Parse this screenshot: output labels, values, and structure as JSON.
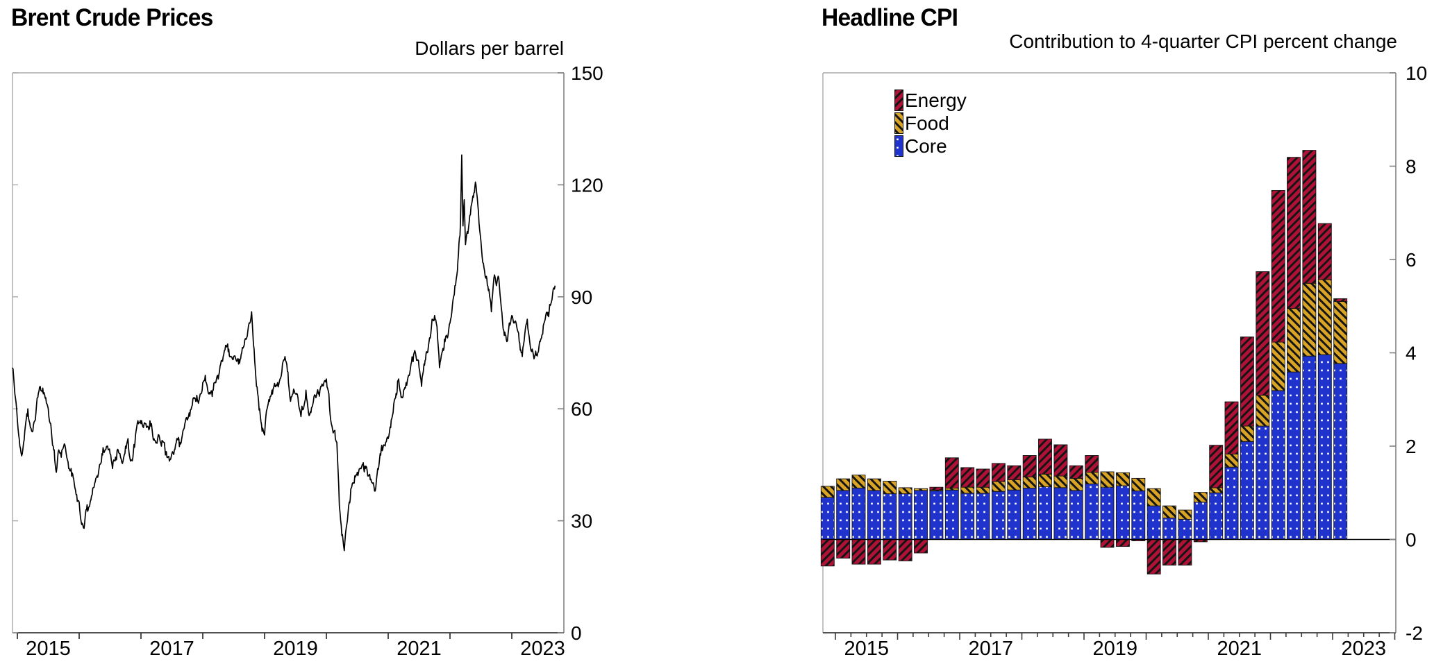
{
  "page": {
    "background": "#ffffff"
  },
  "chart_data": [
    {
      "type": "line",
      "title": "Brent Crude Prices",
      "units_label": "Dollars per barrel",
      "xlim": [
        2014.9,
        2023.85
      ],
      "ylim": [
        0,
        150
      ],
      "y_ticks": [
        0,
        30,
        60,
        90,
        120,
        150
      ],
      "x_tick_years": [
        2015,
        2016,
        2017,
        2018,
        2019,
        2020,
        2021,
        2022,
        2023
      ],
      "x_label_years": [
        "2015",
        "2017",
        "2019",
        "2021",
        "2023"
      ],
      "grid": false,
      "legend_position": "none",
      "series": [
        {
          "name": "Brent crude oil price",
          "color": "#000000",
          "points": [
            [
              2014.92,
              71
            ],
            [
              2014.96,
              64
            ],
            [
              2015.0,
              57
            ],
            [
              2015.04,
              50
            ],
            [
              2015.08,
              48
            ],
            [
              2015.12,
              54
            ],
            [
              2015.17,
              60
            ],
            [
              2015.21,
              55
            ],
            [
              2015.25,
              54
            ],
            [
              2015.29,
              57
            ],
            [
              2015.33,
              63
            ],
            [
              2015.37,
              66
            ],
            [
              2015.42,
              64
            ],
            [
              2015.46,
              63
            ],
            [
              2015.5,
              60
            ],
            [
              2015.54,
              56
            ],
            [
              2015.58,
              50
            ],
            [
              2015.63,
              43
            ],
            [
              2015.67,
              49
            ],
            [
              2015.71,
              47
            ],
            [
              2015.75,
              50
            ],
            [
              2015.79,
              48
            ],
            [
              2015.83,
              44
            ],
            [
              2015.87,
              44
            ],
            [
              2015.92,
              40
            ],
            [
              2015.96,
              37
            ],
            [
              2016.0,
              35
            ],
            [
              2016.04,
              29
            ],
            [
              2016.08,
              28
            ],
            [
              2016.12,
              33
            ],
            [
              2016.17,
              34
            ],
            [
              2016.21,
              37
            ],
            [
              2016.25,
              40
            ],
            [
              2016.29,
              42
            ],
            [
              2016.33,
              45
            ],
            [
              2016.37,
              48
            ],
            [
              2016.42,
              49
            ],
            [
              2016.46,
              50
            ],
            [
              2016.5,
              48
            ],
            [
              2016.54,
              44
            ],
            [
              2016.58,
              46
            ],
            [
              2016.63,
              49
            ],
            [
              2016.67,
              47
            ],
            [
              2016.71,
              46
            ],
            [
              2016.75,
              50
            ],
            [
              2016.79,
              52
            ],
            [
              2016.83,
              46
            ],
            [
              2016.87,
              47
            ],
            [
              2016.92,
              54
            ],
            [
              2016.96,
              56
            ],
            [
              2017.0,
              56
            ],
            [
              2017.04,
              55
            ],
            [
              2017.08,
              56
            ],
            [
              2017.12,
              55
            ],
            [
              2017.17,
              56
            ],
            [
              2017.21,
              52
            ],
            [
              2017.25,
              51
            ],
            [
              2017.29,
              53
            ],
            [
              2017.33,
              50
            ],
            [
              2017.37,
              51
            ],
            [
              2017.42,
              47
            ],
            [
              2017.46,
              46
            ],
            [
              2017.5,
              48
            ],
            [
              2017.54,
              49
            ],
            [
              2017.58,
              52
            ],
            [
              2017.63,
              51
            ],
            [
              2017.67,
              53
            ],
            [
              2017.71,
              56
            ],
            [
              2017.75,
              57
            ],
            [
              2017.79,
              58
            ],
            [
              2017.83,
              61
            ],
            [
              2017.87,
              63
            ],
            [
              2017.92,
              62
            ],
            [
              2017.96,
              64
            ],
            [
              2018.0,
              67
            ],
            [
              2018.04,
              69
            ],
            [
              2018.08,
              65
            ],
            [
              2018.12,
              64
            ],
            [
              2018.17,
              65
            ],
            [
              2018.21,
              67
            ],
            [
              2018.25,
              68
            ],
            [
              2018.29,
              72
            ],
            [
              2018.33,
              74
            ],
            [
              2018.37,
              77
            ],
            [
              2018.42,
              76
            ],
            [
              2018.46,
              74
            ],
            [
              2018.5,
              74
            ],
            [
              2018.54,
              73
            ],
            [
              2018.58,
              72
            ],
            [
              2018.63,
              75
            ],
            [
              2018.67,
              77
            ],
            [
              2018.71,
              79
            ],
            [
              2018.75,
              83
            ],
            [
              2018.79,
              86
            ],
            [
              2018.83,
              76
            ],
            [
              2018.87,
              66
            ],
            [
              2018.92,
              60
            ],
            [
              2018.96,
              54
            ],
            [
              2019.0,
              53
            ],
            [
              2019.04,
              60
            ],
            [
              2019.08,
              62
            ],
            [
              2019.12,
              65
            ],
            [
              2019.17,
              66
            ],
            [
              2019.21,
              67
            ],
            [
              2019.25,
              68
            ],
            [
              2019.29,
              72
            ],
            [
              2019.33,
              74
            ],
            [
              2019.37,
              70
            ],
            [
              2019.42,
              62
            ],
            [
              2019.46,
              64
            ],
            [
              2019.5,
              64
            ],
            [
              2019.54,
              63
            ],
            [
              2019.58,
              59
            ],
            [
              2019.63,
              60
            ],
            [
              2019.67,
              65
            ],
            [
              2019.71,
              59
            ],
            [
              2019.75,
              59
            ],
            [
              2019.79,
              62
            ],
            [
              2019.83,
              63
            ],
            [
              2019.87,
              64
            ],
            [
              2019.92,
              66
            ],
            [
              2019.96,
              67
            ],
            [
              2020.0,
              68
            ],
            [
              2020.04,
              64
            ],
            [
              2020.08,
              56
            ],
            [
              2020.12,
              54
            ],
            [
              2020.17,
              51
            ],
            [
              2020.21,
              34
            ],
            [
              2020.25,
              26
            ],
            [
              2020.29,
              22
            ],
            [
              2020.33,
              29
            ],
            [
              2020.37,
              35
            ],
            [
              2020.42,
              40
            ],
            [
              2020.46,
              42
            ],
            [
              2020.5,
              43
            ],
            [
              2020.54,
              44
            ],
            [
              2020.58,
              45
            ],
            [
              2020.63,
              44
            ],
            [
              2020.67,
              42
            ],
            [
              2020.71,
              41
            ],
            [
              2020.75,
              40
            ],
            [
              2020.79,
              38
            ],
            [
              2020.83,
              44
            ],
            [
              2020.87,
              48
            ],
            [
              2020.92,
              50
            ],
            [
              2020.96,
              51
            ],
            [
              2021.0,
              52
            ],
            [
              2021.04,
              55
            ],
            [
              2021.08,
              59
            ],
            [
              2021.12,
              63
            ],
            [
              2021.17,
              68
            ],
            [
              2021.21,
              63
            ],
            [
              2021.25,
              65
            ],
            [
              2021.29,
              67
            ],
            [
              2021.33,
              69
            ],
            [
              2021.37,
              72
            ],
            [
              2021.42,
              75
            ],
            [
              2021.46,
              73
            ],
            [
              2021.5,
              71
            ],
            [
              2021.54,
              66
            ],
            [
              2021.58,
              72
            ],
            [
              2021.63,
              75
            ],
            [
              2021.67,
              79
            ],
            [
              2021.71,
              84
            ],
            [
              2021.75,
              85
            ],
            [
              2021.79,
              82
            ],
            [
              2021.83,
              71
            ],
            [
              2021.87,
              75
            ],
            [
              2021.92,
              78
            ],
            [
              2021.96,
              79
            ],
            [
              2022.0,
              83
            ],
            [
              2022.04,
              88
            ],
            [
              2022.08,
              93
            ],
            [
              2022.12,
              97
            ],
            [
              2022.17,
              110
            ],
            [
              2022.19,
              128
            ],
            [
              2022.21,
              109
            ],
            [
              2022.23,
              116
            ],
            [
              2022.25,
              104
            ],
            [
              2022.29,
              107
            ],
            [
              2022.33,
              112
            ],
            [
              2022.37,
              117
            ],
            [
              2022.42,
              120
            ],
            [
              2022.46,
              113
            ],
            [
              2022.5,
              105
            ],
            [
              2022.54,
              99
            ],
            [
              2022.58,
              95
            ],
            [
              2022.63,
              92
            ],
            [
              2022.67,
              86
            ],
            [
              2022.71,
              95
            ],
            [
              2022.75,
              93
            ],
            [
              2022.79,
              95
            ],
            [
              2022.83,
              87
            ],
            [
              2022.87,
              81
            ],
            [
              2022.92,
              78
            ],
            [
              2022.96,
              83
            ],
            [
              2023.0,
              85
            ],
            [
              2023.04,
              83
            ],
            [
              2023.08,
              82
            ],
            [
              2023.12,
              78
            ],
            [
              2023.17,
              74
            ],
            [
              2023.21,
              80
            ],
            [
              2023.25,
              84
            ],
            [
              2023.29,
              78
            ],
            [
              2023.33,
              76
            ],
            [
              2023.37,
              74
            ],
            [
              2023.42,
              75
            ],
            [
              2023.46,
              78
            ],
            [
              2023.5,
              80
            ],
            [
              2023.54,
              84
            ],
            [
              2023.58,
              85
            ],
            [
              2023.63,
              88
            ],
            [
              2023.67,
              92
            ],
            [
              2023.7,
              93
            ]
          ]
        }
      ],
      "render_noise": {
        "amplitude": 1.4
      }
    },
    {
      "type": "bar",
      "stacked": true,
      "title": "Headline CPI",
      "subtitle": "Contribution to 4-quarter CPI percent change",
      "ylim": [
        -2,
        10
      ],
      "y_ticks": [
        -2,
        0,
        2,
        4,
        6,
        8,
        10
      ],
      "x_label_years": [
        "2015",
        "2017",
        "2019",
        "2021",
        "2023"
      ],
      "grid": false,
      "legend_position": "upper-left",
      "categories": [
        "2014 Q4",
        "2015 Q1",
        "2015 Q2",
        "2015 Q3",
        "2015 Q4",
        "2016 Q1",
        "2016 Q2",
        "2016 Q3",
        "2016 Q4",
        "2017 Q1",
        "2017 Q2",
        "2017 Q3",
        "2017 Q4",
        "2018 Q1",
        "2018 Q2",
        "2018 Q3",
        "2018 Q4",
        "2019 Q1",
        "2019 Q2",
        "2019 Q3",
        "2019 Q4",
        "2020 Q1",
        "2020 Q2",
        "2020 Q3",
        "2020 Q4",
        "2021 Q1",
        "2021 Q2",
        "2021 Q3",
        "2021 Q4",
        "2022 Q1",
        "2022 Q2",
        "2022 Q3",
        "2022 Q4",
        "2023 Q1"
      ],
      "series": [
        {
          "name": "Energy",
          "color": "#B01237",
          "hatch": "forward-diagonal",
          "values": [
            -0.57,
            -0.4,
            -0.53,
            -0.53,
            -0.44,
            -0.46,
            -0.29,
            0.06,
            0.65,
            0.42,
            0.39,
            0.39,
            0.3,
            0.46,
            0.75,
            0.67,
            0.27,
            0.36,
            -0.17,
            -0.15,
            -0.03,
            -0.74,
            -0.55,
            -0.55,
            -0.05,
            0.91,
            1.12,
            1.91,
            2.65,
            3.25,
            3.24,
            2.85,
            1.2,
            0.06
          ]
        },
        {
          "name": "Food",
          "color": "#D9A425",
          "hatch": "back-diagonal",
          "values": [
            0.24,
            0.25,
            0.28,
            0.25,
            0.27,
            0.13,
            0.04,
            0.02,
            0.04,
            0.13,
            0.13,
            0.21,
            0.22,
            0.24,
            0.27,
            0.25,
            0.26,
            0.25,
            0.33,
            0.28,
            0.27,
            0.37,
            0.26,
            0.2,
            0.21,
            0.11,
            0.28,
            0.33,
            0.66,
            1.04,
            1.36,
            1.56,
            1.61,
            1.33
          ]
        },
        {
          "name": "Core",
          "color": "#2033CC",
          "hatch": "white-dots",
          "values": [
            0.9,
            1.05,
            1.1,
            1.05,
            0.98,
            0.98,
            1.05,
            1.04,
            1.06,
            0.99,
            0.99,
            1.03,
            1.06,
            1.1,
            1.13,
            1.11,
            1.05,
            1.19,
            1.12,
            1.15,
            1.04,
            0.72,
            0.46,
            0.43,
            0.8,
            1.0,
            1.55,
            2.1,
            2.43,
            3.19,
            3.59,
            3.93,
            3.96,
            3.77
          ]
        }
      ]
    }
  ]
}
